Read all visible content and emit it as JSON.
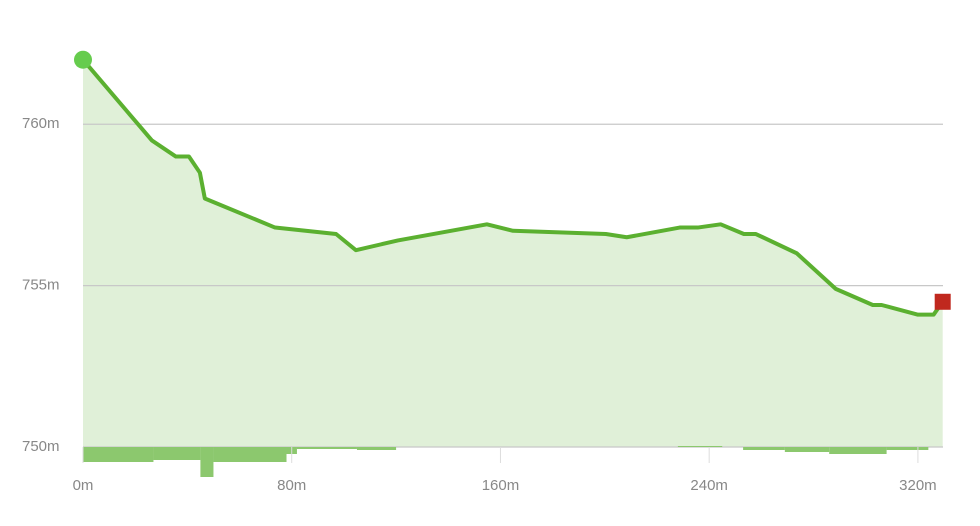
{
  "chart_data": {
    "type": "area",
    "x": [
      0,
      26.4,
      35.6,
      40.6,
      44.8,
      46.7,
      73.6,
      97,
      104.6,
      120.7,
      154.8,
      164.8,
      200.4,
      208.4,
      228.7,
      235.6,
      244.4,
      253.3,
      257.9,
      273.6,
      288.5,
      302.7,
      306.1,
      320,
      326,
      329.5
    ],
    "values": [
      762.0,
      759.5,
      759.0,
      759.0,
      758.5,
      757.7,
      756.8,
      756.6,
      756.1,
      756.4,
      756.9,
      756.7,
      756.6,
      756.5,
      756.8,
      756.8,
      756.9,
      756.6,
      756.6,
      756.0,
      754.9,
      754.4,
      754.4,
      754.1,
      754.1,
      754.5
    ],
    "color": "#5bb030",
    "fill": "#e0f0d8",
    "start_color": "#66cc4d",
    "end_color": "#c0281e",
    "xlim": [
      0,
      330
    ],
    "ylim": [
      750,
      762.5
    ],
    "xticks": [
      {
        "value": 0,
        "label": "0m"
      },
      {
        "value": 80,
        "label": "80m"
      },
      {
        "value": 160,
        "label": "160m"
      },
      {
        "value": 240,
        "label": "240m"
      },
      {
        "value": 320,
        "label": "320m"
      }
    ],
    "yticks": [
      {
        "value": 750,
        "label": "750m"
      },
      {
        "value": 755,
        "label": "755m"
      },
      {
        "value": 760,
        "label": "760m"
      }
    ],
    "grid": true,
    "slope": {
      "color": "#8cc86e",
      "lim": [
        -30,
        0
      ],
      "x0": [
        0,
        27,
        45,
        50,
        78,
        82,
        105,
        228,
        253,
        269,
        286,
        308
      ],
      "x1": [
        27,
        45,
        50,
        78,
        82,
        105,
        120,
        245,
        269,
        286,
        308,
        324
      ],
      "values": [
        -15,
        -13,
        -30,
        -15,
        -7,
        -2,
        -3,
        1,
        -3,
        -5,
        -7,
        -3
      ]
    }
  }
}
